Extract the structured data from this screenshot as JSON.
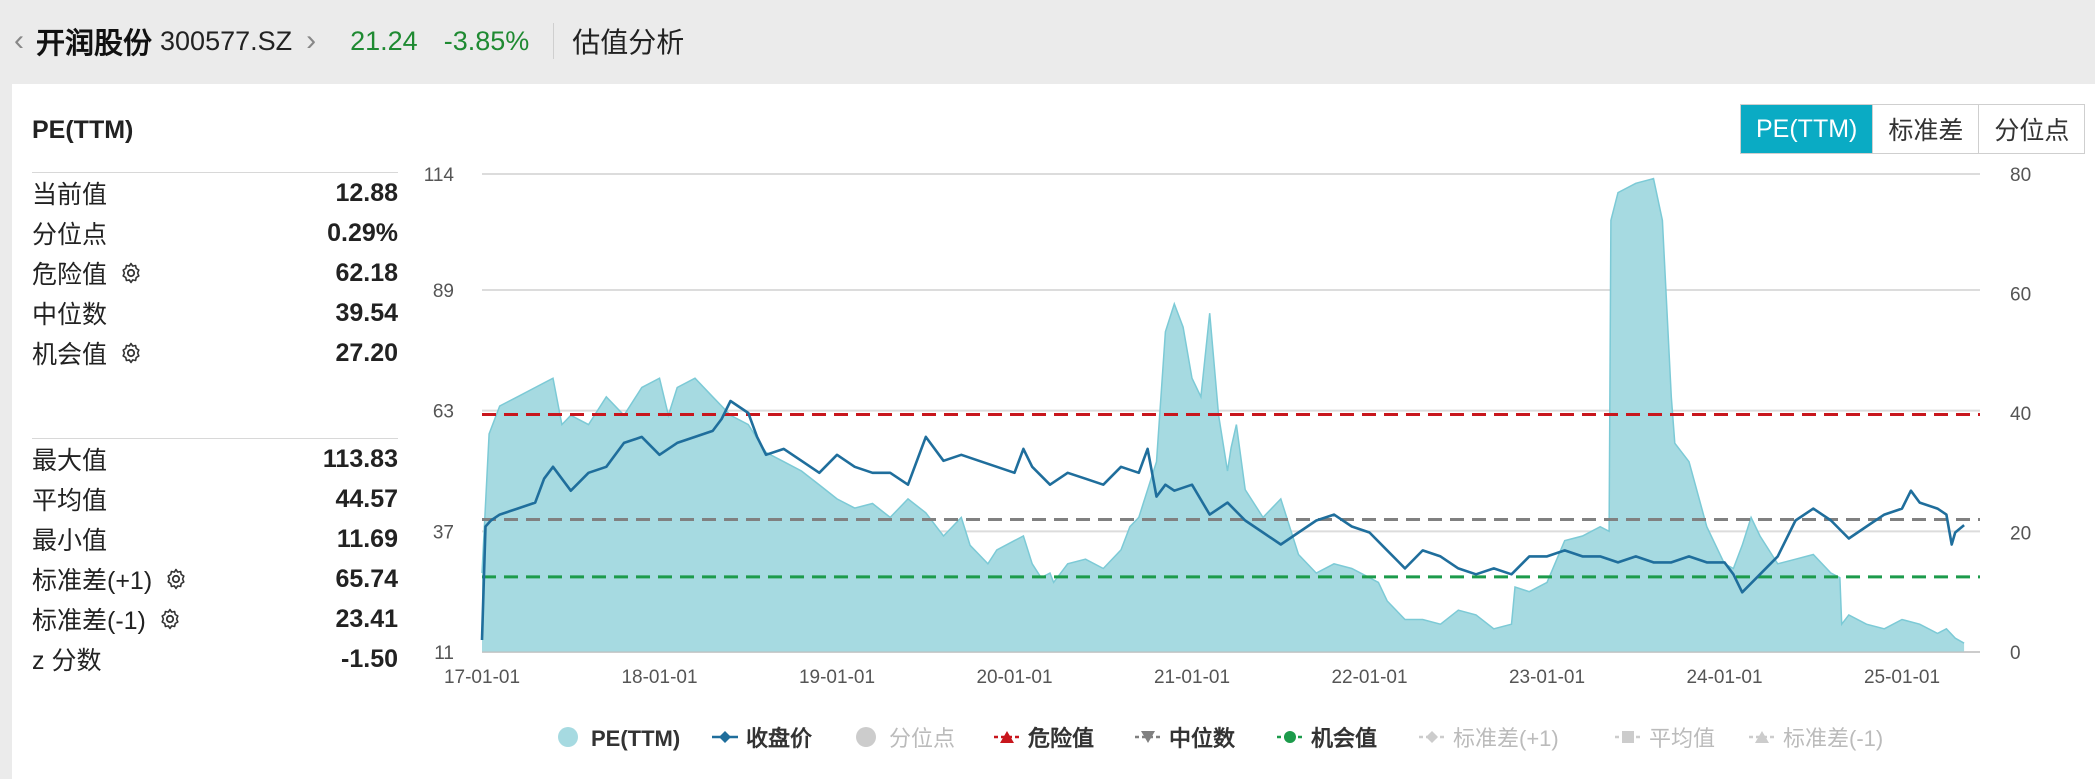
{
  "header": {
    "back_icon": "chevron-left-icon",
    "stock_name": "开润股份",
    "stock_code": "300577.SZ",
    "forward_icon": "chevron-right-icon",
    "price": "21.24",
    "change_pct": "-3.85%",
    "page_title": "估值分析",
    "price_color": "#1f8a32"
  },
  "panel": {
    "title": "PE(TTM)",
    "tabs": [
      "PE(TTM)",
      "标准差",
      "分位点"
    ],
    "active_tab": "PE(TTM)"
  },
  "stats_top": [
    {
      "label": "当前值",
      "value": "12.88",
      "gear": false
    },
    {
      "label": "分位点",
      "value": "0.29%",
      "gear": false
    },
    {
      "label": "危险值",
      "value": "62.18",
      "gear": true
    },
    {
      "label": "中位数",
      "value": "39.54",
      "gear": false
    },
    {
      "label": "机会值",
      "value": "27.20",
      "gear": true
    }
  ],
  "stats_bottom": [
    {
      "label": "最大值",
      "value": "113.83",
      "gear": false
    },
    {
      "label": "平均值",
      "value": "44.57",
      "gear": false
    },
    {
      "label": "最小值",
      "value": "11.69",
      "gear": false
    },
    {
      "label": "标准差(+1)",
      "value": "65.74",
      "gear": true
    },
    {
      "label": "标准差(-1)",
      "value": "23.41",
      "gear": true
    },
    {
      "label": "z 分数",
      "value": "-1.50",
      "gear": false
    }
  ],
  "chart_data": {
    "type": "area",
    "x_ticks": [
      "17-01-01",
      "18-01-01",
      "19-01-01",
      "20-01-01",
      "21-01-01",
      "22-01-01",
      "23-01-01",
      "24-01-01",
      "25-01-01"
    ],
    "y_left": {
      "ticks": [
        114,
        89,
        63,
        37,
        11
      ],
      "range": [
        11,
        114
      ]
    },
    "y_right": {
      "ticks": [
        80,
        60,
        40,
        20,
        0
      ],
      "range": [
        0,
        80
      ]
    },
    "colors": {
      "pe": "#a6dae1",
      "pe_edge": "#7ccad6",
      "close": "#1f6e9c",
      "danger": "#c8161d",
      "median": "#808080",
      "opportunity": "#1c9b4b"
    },
    "series": [
      {
        "name": "PE(TTM)",
        "axis": "left",
        "x": [
          2017.0,
          2017.04,
          2017.1,
          2017.2,
          2017.3,
          2017.4,
          2017.45,
          2017.5,
          2017.6,
          2017.7,
          2017.8,
          2017.9,
          2018.0,
          2018.05,
          2018.1,
          2018.2,
          2018.3,
          2018.4,
          2018.5,
          2018.6,
          2018.7,
          2018.8,
          2018.9,
          2019.0,
          2019.1,
          2019.2,
          2019.3,
          2019.4,
          2019.5,
          2019.6,
          2019.7,
          2019.75,
          2019.8,
          2019.85,
          2019.9,
          2020.0,
          2020.05,
          2020.1,
          2020.15,
          2020.2,
          2020.22,
          2020.3,
          2020.4,
          2020.5,
          2020.6,
          2020.65,
          2020.7,
          2020.8,
          2020.85,
          2020.9,
          2020.95,
          2021.0,
          2021.05,
          2021.1,
          2021.15,
          2021.2,
          2021.22,
          2021.25,
          2021.3,
          2021.4,
          2021.5,
          2021.6,
          2021.7,
          2021.8,
          2021.9,
          2022.0,
          2022.05,
          2022.1,
          2022.2,
          2022.3,
          2022.4,
          2022.5,
          2022.6,
          2022.7,
          2022.8,
          2022.82,
          2022.9,
          2023.0,
          2023.1,
          2023.2,
          2023.3,
          2023.35,
          2023.36,
          2023.4,
          2023.5,
          2023.6,
          2023.65,
          2023.7,
          2023.72,
          2023.8,
          2023.9,
          2024.0,
          2024.05,
          2024.1,
          2024.15,
          2024.2,
          2024.3,
          2024.4,
          2024.5,
          2024.6,
          2024.65,
          2024.66,
          2024.7,
          2024.8,
          2024.9,
          2025.0,
          2025.1,
          2025.2,
          2025.25,
          2025.3,
          2025.35
        ],
        "y": [
          28,
          58,
          64,
          66,
          68,
          70,
          60,
          62,
          60,
          66,
          62,
          68,
          70,
          62,
          68,
          70,
          66,
          62,
          60,
          54,
          52,
          50,
          47,
          44,
          42,
          43,
          40,
          44,
          41,
          36,
          40,
          34,
          32,
          30,
          33,
          35,
          36,
          30,
          27,
          28,
          26,
          30,
          31,
          29,
          33,
          38,
          40,
          52,
          80,
          86,
          81,
          70,
          66,
          84,
          62,
          50,
          55,
          60,
          46,
          40,
          44,
          32,
          28,
          30,
          29,
          27,
          26,
          22,
          18,
          18,
          17,
          20,
          19,
          16,
          17,
          25,
          24,
          26,
          35,
          36,
          38,
          37,
          104,
          110,
          112,
          113,
          104,
          66,
          56,
          52,
          38,
          30,
          29,
          34,
          40,
          36,
          30,
          31,
          32,
          28,
          27,
          17,
          19,
          17,
          16,
          18,
          17,
          15,
          16,
          14,
          12.9
        ]
      },
      {
        "name": "收盘价",
        "axis": "right",
        "x": [
          2017.0,
          2017.02,
          2017.05,
          2017.1,
          2017.2,
          2017.3,
          2017.35,
          2017.4,
          2017.5,
          2017.6,
          2017.7,
          2017.8,
          2017.9,
          2018.0,
          2018.1,
          2018.2,
          2018.3,
          2018.35,
          2018.4,
          2018.5,
          2018.55,
          2018.6,
          2018.7,
          2018.8,
          2018.9,
          2019.0,
          2019.1,
          2019.2,
          2019.3,
          2019.4,
          2019.5,
          2019.6,
          2019.7,
          2019.8,
          2019.9,
          2020.0,
          2020.05,
          2020.1,
          2020.2,
          2020.3,
          2020.4,
          2020.5,
          2020.6,
          2020.7,
          2020.75,
          2020.8,
          2020.85,
          2020.9,
          2021.0,
          2021.1,
          2021.2,
          2021.3,
          2021.4,
          2021.5,
          2021.6,
          2021.7,
          2021.8,
          2021.9,
          2022.0,
          2022.1,
          2022.2,
          2022.3,
          2022.4,
          2022.5,
          2022.6,
          2022.7,
          2022.8,
          2022.9,
          2023.0,
          2023.1,
          2023.2,
          2023.3,
          2023.4,
          2023.5,
          2023.6,
          2023.7,
          2023.8,
          2023.9,
          2024.0,
          2024.05,
          2024.1,
          2024.2,
          2024.3,
          2024.4,
          2024.5,
          2024.6,
          2024.7,
          2024.8,
          2024.9,
          2025.0,
          2025.05,
          2025.1,
          2025.2,
          2025.25,
          2025.28,
          2025.3,
          2025.35
        ],
        "y": [
          2,
          21,
          22,
          23,
          24,
          25,
          29,
          31,
          27,
          30,
          31,
          35,
          36,
          33,
          35,
          36,
          37,
          39,
          42,
          40,
          36,
          33,
          34,
          32,
          30,
          33,
          31,
          30,
          30,
          28,
          36,
          32,
          33,
          32,
          31,
          30,
          34,
          31,
          28,
          30,
          29,
          28,
          31,
          30,
          34,
          26,
          28,
          27,
          28,
          23,
          25,
          22,
          20,
          18,
          20,
          22,
          23,
          21,
          20,
          17,
          14,
          17,
          16,
          14,
          13,
          14,
          13,
          16,
          16,
          17,
          16,
          16,
          15,
          16,
          15,
          15,
          16,
          15,
          15,
          13,
          10,
          13,
          16,
          22,
          24,
          22,
          19,
          21,
          23,
          24,
          27,
          25,
          24,
          23,
          18,
          20,
          21.24
        ]
      }
    ],
    "reference_lines": [
      {
        "name": "危险值",
        "value": 62.18,
        "axis": "left"
      },
      {
        "name": "中位数",
        "value": 39.54,
        "axis": "left"
      },
      {
        "name": "机会值",
        "value": 27.2,
        "axis": "left"
      }
    ],
    "grid": true,
    "legend": {
      "placement": "bottom",
      "items": [
        {
          "label": "PE(TTM)",
          "active": true,
          "marker": "circle-filled",
          "color": "#a6dae1"
        },
        {
          "label": "收盘价",
          "active": true,
          "marker": "diamond-line",
          "color": "#1f6e9c"
        },
        {
          "label": "分位点",
          "active": false,
          "marker": "circle-filled",
          "color": "#cccccc"
        },
        {
          "label": "危险值",
          "active": true,
          "marker": "triangle-dash",
          "color": "#c8161d"
        },
        {
          "label": "中位数",
          "active": true,
          "marker": "triangle-down-dash",
          "color": "#808080"
        },
        {
          "label": "机会值",
          "active": true,
          "marker": "circle-dash",
          "color": "#1c9b4b"
        },
        {
          "label": "标准差(+1)",
          "active": false,
          "marker": "diamond-dash",
          "color": "#cccccc"
        },
        {
          "label": "平均值",
          "active": false,
          "marker": "square-dash",
          "color": "#cccccc"
        },
        {
          "label": "标准差(-1)",
          "active": false,
          "marker": "triangle-dash",
          "color": "#cccccc"
        }
      ]
    }
  }
}
